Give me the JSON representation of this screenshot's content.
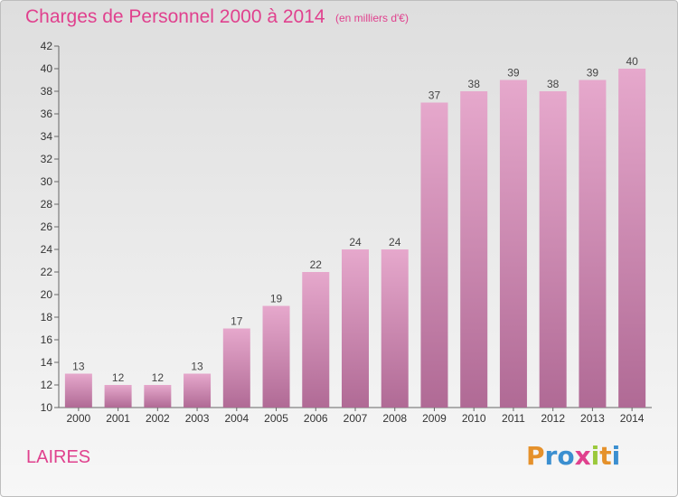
{
  "header": {
    "title": "Charges de Personnel 2000 à 2014",
    "subtitle": "(en milliers d'€)"
  },
  "footer": {
    "place": "LAIRES",
    "logo_text": "Proxiti"
  },
  "colors": {
    "accent": "#e0418e",
    "bar_top": "#e6a8cc",
    "bar_bottom": "#b06a95",
    "logo_letters": [
      "#e5912b",
      "#3b8fd0",
      "#3b8fd0",
      "#e0418e",
      "#9ac93b",
      "#e5912b",
      "#3b8fd0"
    ]
  },
  "chart_data": {
    "type": "bar",
    "title": "Charges de Personnel 2000 à 2014",
    "subtitle": "(en milliers d'€)",
    "categories": [
      "2000",
      "2001",
      "2002",
      "2003",
      "2004",
      "2005",
      "2006",
      "2007",
      "2008",
      "2009",
      "2010",
      "2011",
      "2012",
      "2013",
      "2014"
    ],
    "values": [
      13,
      12,
      12,
      13,
      17,
      19,
      22,
      24,
      24,
      37,
      38,
      39,
      38,
      39,
      40
    ],
    "ylim": [
      10,
      42
    ],
    "yticks": [
      10,
      12,
      14,
      16,
      18,
      20,
      22,
      24,
      26,
      28,
      30,
      32,
      34,
      36,
      38,
      40,
      42
    ],
    "grid": false,
    "data_labels": true
  }
}
